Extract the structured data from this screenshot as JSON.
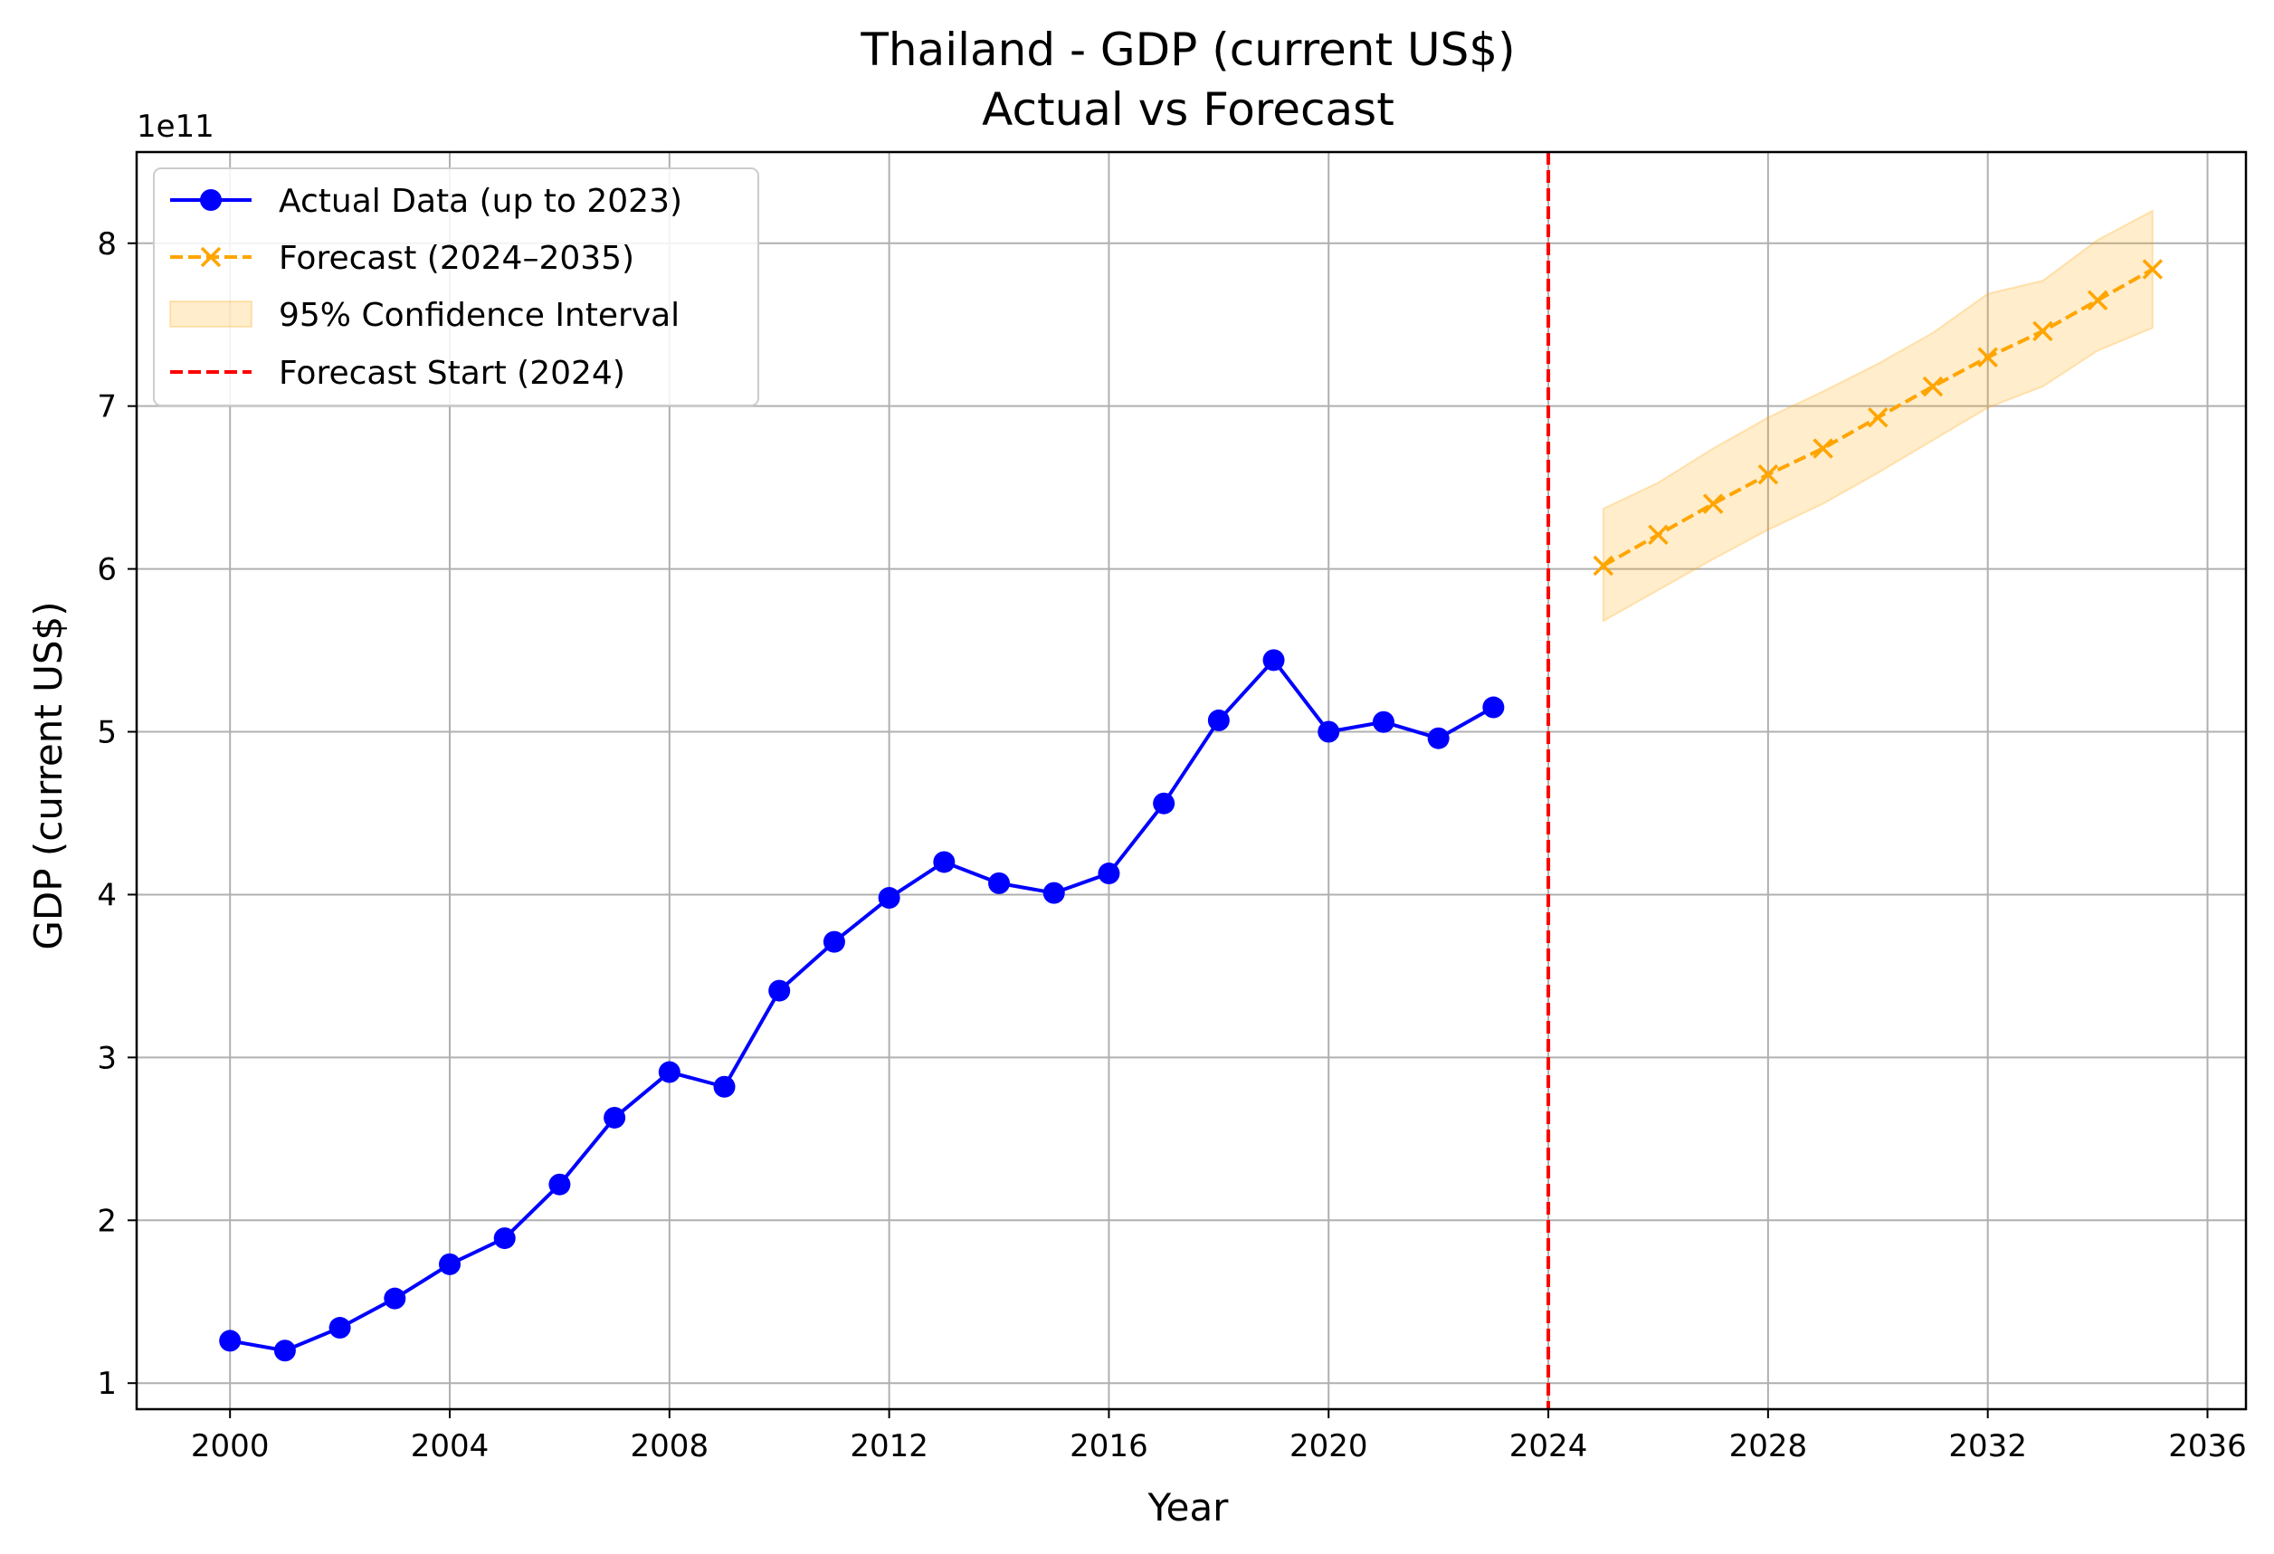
{
  "chart_data": {
    "type": "line",
    "title": "Thailand - GDP (current US$)",
    "subtitle": "Actual vs Forecast",
    "xlabel": "Year",
    "ylabel": "GDP (current US$)",
    "y_offset_label": "1e11",
    "xlim": [
      1998.3,
      2036.7
    ],
    "ylim": [
      0.84,
      8.56
    ],
    "x_ticks": [
      2000,
      2004,
      2008,
      2012,
      2016,
      2020,
      2024,
      2028,
      2032,
      2036
    ],
    "y_ticks": [
      1,
      2,
      3,
      4,
      5,
      6,
      7,
      8
    ],
    "grid": true,
    "legend_position": "top-left",
    "series": [
      {
        "name": "Actual Data (up to 2023)",
        "color": "#0000ff",
        "style": "solid-circle",
        "x": [
          2000,
          2001,
          2002,
          2003,
          2004,
          2005,
          2006,
          2007,
          2008,
          2009,
          2010,
          2011,
          2012,
          2013,
          2014,
          2015,
          2016,
          2017,
          2018,
          2019,
          2020,
          2021,
          2022,
          2023
        ],
        "y": [
          1.26,
          1.2,
          1.34,
          1.52,
          1.73,
          1.89,
          2.22,
          2.63,
          2.91,
          2.82,
          3.41,
          3.71,
          3.98,
          4.2,
          4.07,
          4.01,
          4.13,
          4.56,
          5.07,
          5.44,
          5.0,
          5.06,
          4.96,
          5.15
        ]
      },
      {
        "name": "Forecast (2024–2035)",
        "color": "#ffa500",
        "style": "dashed-x",
        "x": [
          2025,
          2026,
          2027,
          2028,
          2029,
          2030,
          2031,
          2032,
          2033,
          2034,
          2035
        ],
        "y": [
          6.02,
          6.21,
          6.4,
          6.58,
          6.74,
          6.93,
          7.12,
          7.3,
          7.46,
          7.65,
          7.84
        ]
      }
    ],
    "confidence_interval": {
      "name": "95% Confidence Interval",
      "color": "#ffa500",
      "x": [
        2025,
        2026,
        2027,
        2028,
        2029,
        2030,
        2031,
        2032,
        2033,
        2034,
        2035
      ],
      "lower": [
        5.68,
        5.87,
        6.06,
        6.24,
        6.4,
        6.59,
        6.79,
        6.99,
        7.12,
        7.34,
        7.48
      ],
      "upper": [
        6.37,
        6.53,
        6.74,
        6.93,
        7.09,
        7.26,
        7.45,
        7.69,
        7.77,
        8.02,
        8.2
      ]
    },
    "vline": {
      "name": "Forecast Start (2024)",
      "x": 2024,
      "color": "#ff0000",
      "style": "dashed"
    }
  }
}
